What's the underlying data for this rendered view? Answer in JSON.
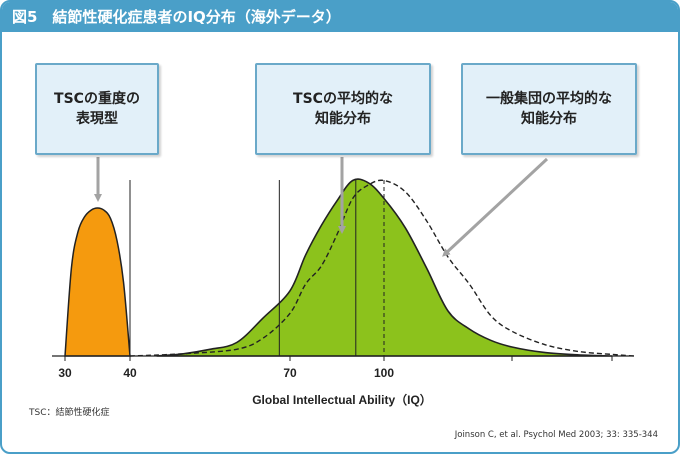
{
  "header": {
    "title": "図5　結節性硬化症患者のIQ分布（海外データ）"
  },
  "callouts": [
    {
      "text": "TSCの重度の\n表現型"
    },
    {
      "text": "TSCの平均的な\n知能分布"
    },
    {
      "text": "一般集団の平均的な\n知能分布"
    }
  ],
  "colors": {
    "frame": "#4a9fc8",
    "severe_fill": "#f59a0e",
    "tsc_fill": "#8cc21c",
    "callout_bg": "#e2f0f9",
    "arrow": "#a3a3a3"
  },
  "chart_data": {
    "type": "area",
    "xlabel": "Global Intellectual Ability（IQ）",
    "ylabel": "",
    "x_ticks": [
      30,
      40,
      70,
      100
    ],
    "x_ticks_unlabeled": [
      130,
      160
    ],
    "xlim": [
      30,
      170
    ],
    "ylim": [
      0,
      1
    ],
    "grid": false,
    "reference_lines": [
      {
        "x": 40,
        "style": "solid"
      },
      {
        "x": 68,
        "style": "solid"
      },
      {
        "x": 91,
        "style": "solid"
      },
      {
        "x": 100,
        "style": "dashed"
      }
    ],
    "series": [
      {
        "fill": "orange",
        "x": [
          30,
          31,
          32,
          33,
          34,
          35,
          36,
          37,
          38,
          39,
          40
        ],
        "y": [
          0,
          0.6,
          0.84,
          0.94,
          0.985,
          1.0,
          0.985,
          0.93,
          0.78,
          0.5,
          0
        ]
      },
      {
        "fill": "green",
        "x": [
          45,
          50,
          55,
          60,
          65,
          70,
          75,
          80,
          85,
          90,
          95,
          100,
          105,
          110,
          115,
          120,
          125,
          130,
          140,
          150,
          160
        ],
        "y": [
          0,
          0.01,
          0.03,
          0.06,
          0.17,
          0.29,
          0.45,
          0.58,
          0.69,
          0.78,
          0.77,
          0.7,
          0.57,
          0.39,
          0.2,
          0.12,
          0.07,
          0.04,
          0.015,
          0.005,
          0
        ]
      },
      {
        "style": "dashed",
        "x": [
          40,
          50,
          60,
          65,
          70,
          75,
          80,
          85,
          90,
          95,
          100,
          105,
          110,
          115,
          120,
          125,
          130,
          140,
          150,
          160,
          170
        ],
        "y": [
          0,
          0.01,
          0.03,
          0.08,
          0.19,
          0.32,
          0.4,
          0.54,
          0.7,
          0.76,
          0.78,
          0.73,
          0.6,
          0.44,
          0.32,
          0.18,
          0.11,
          0.05,
          0.02,
          0.007,
          0
        ]
      }
    ]
  },
  "footnote": "TSC：結節性硬化症",
  "citation": "Joinson C, et al. Psychol Med 2003; 33: 335-344"
}
